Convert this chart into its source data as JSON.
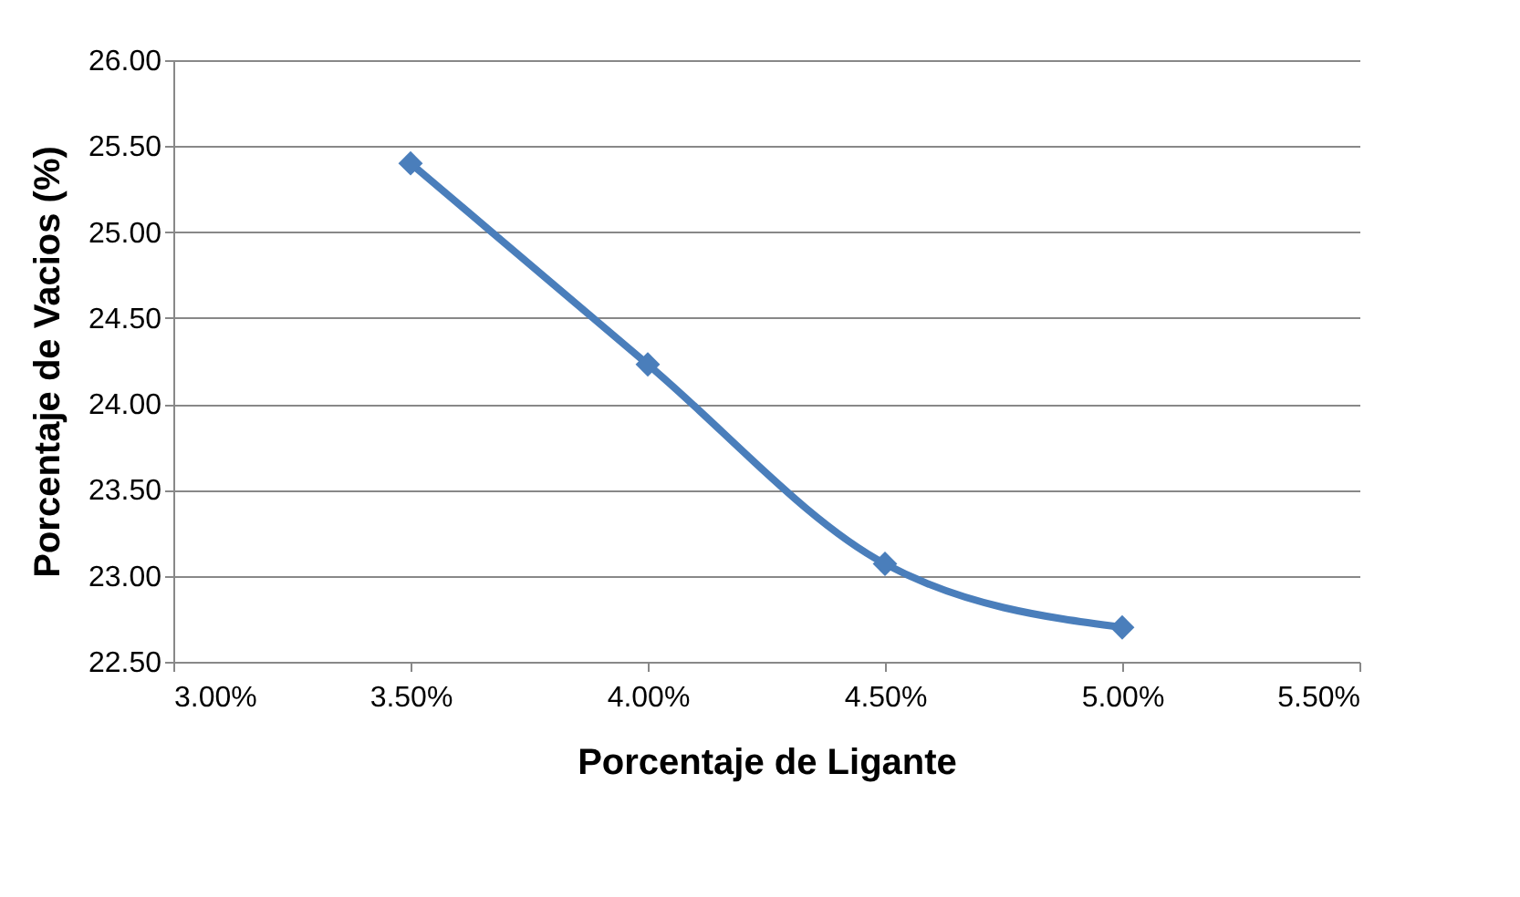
{
  "chart_data": {
    "type": "line",
    "xlabel": "Porcentaje de Ligante",
    "ylabel": "Porcentaje de Vacios (%)",
    "x": [
      3.5,
      4.0,
      4.5,
      5.0
    ],
    "series": [
      {
        "color": "#4a7ebb",
        "values": [
          25.4,
          24.23,
          23.07,
          22.7
        ]
      }
    ],
    "xlim": [
      3.0,
      5.5
    ],
    "xticks": [
      {
        "value": 3.0,
        "label": "3.00%"
      },
      {
        "value": 3.5,
        "label": "3.50%"
      },
      {
        "value": 4.0,
        "label": "4.00%"
      },
      {
        "value": 4.5,
        "label": "4.50%"
      },
      {
        "value": 5.0,
        "label": "5.00%"
      },
      {
        "value": 5.5,
        "label": "5.50%"
      }
    ],
    "ylim": [
      22.5,
      26.0
    ],
    "yticks": [
      {
        "value": 22.5,
        "label": "22.50"
      },
      {
        "value": 23.0,
        "label": "23.00"
      },
      {
        "value": 23.5,
        "label": "23.50"
      },
      {
        "value": 24.0,
        "label": "24.00"
      },
      {
        "value": 24.5,
        "label": "24.50"
      },
      {
        "value": 25.0,
        "label": "25.00"
      },
      {
        "value": 25.5,
        "label": "25.50"
      },
      {
        "value": 26.0,
        "label": "26.00"
      }
    ],
    "grid": "y",
    "marker": "diamond",
    "line_style": "solid",
    "legend": false
  }
}
